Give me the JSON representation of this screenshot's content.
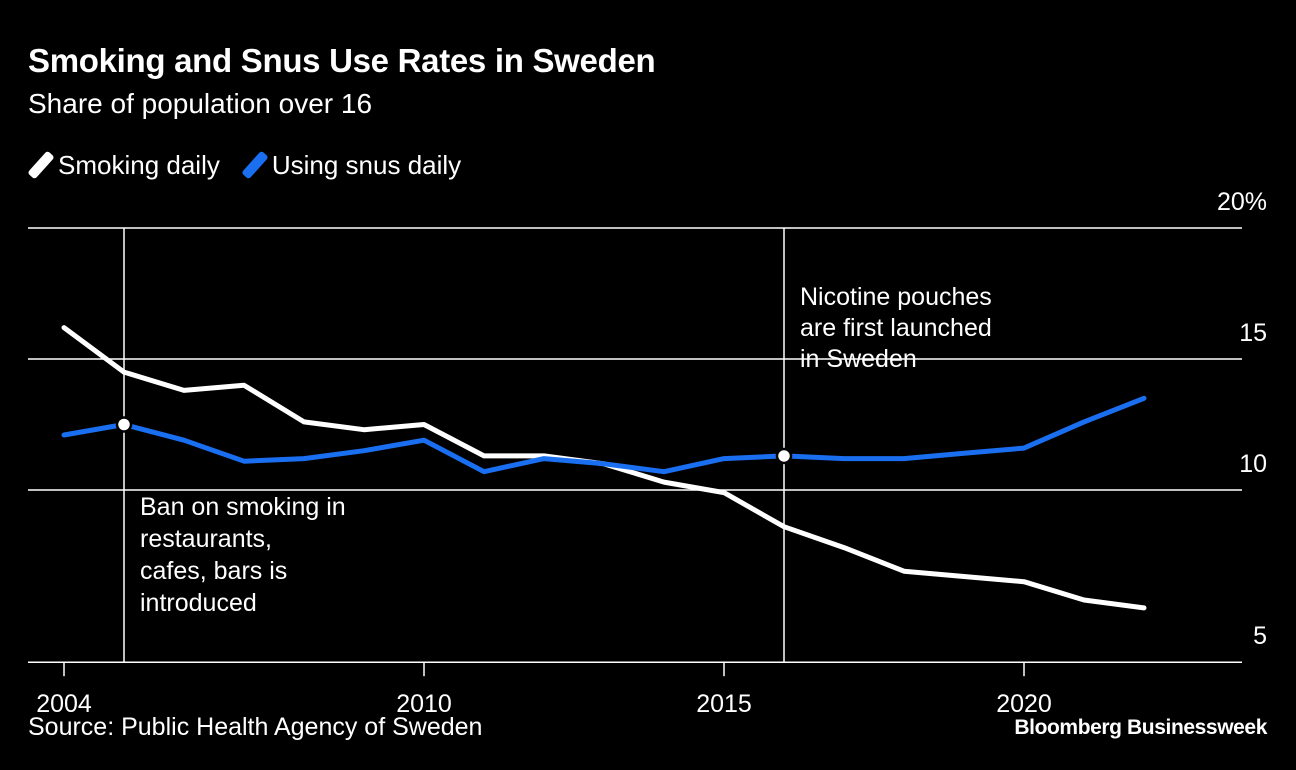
{
  "colors": {
    "background": "#000000",
    "smoking": "#ffffff",
    "snus": "#1a6ff0",
    "grid": "#ffffff",
    "text": "#ffffff"
  },
  "chart_data": {
    "type": "line",
    "title": "Smoking and Snus Use Rates in Sweden",
    "subtitle": "Share of population over 16",
    "xlim": [
      2003,
      2023.6
    ],
    "ylim": [
      4,
      20
    ],
    "y_ticks": [
      {
        "value": 20,
        "label": "20%"
      },
      {
        "value": 15,
        "label": "15"
      },
      {
        "value": 10,
        "label": "10"
      },
      {
        "value": 5,
        "label": "5"
      }
    ],
    "x_ticks": [
      {
        "value": 2004,
        "label": "2004"
      },
      {
        "value": 2010,
        "label": "2010"
      },
      {
        "value": 2015,
        "label": "2015"
      },
      {
        "value": 2020,
        "label": "2020"
      }
    ],
    "gridlines": [
      20,
      15,
      10
    ],
    "legend": "top-left",
    "series": [
      {
        "name": "Smoking daily",
        "color": "#ffffff",
        "x": [
          2004,
          2005,
          2006,
          2007,
          2008,
          2009,
          2010,
          2011,
          2012,
          2013,
          2014,
          2015,
          2016,
          2017,
          2018,
          2019,
          2020,
          2021,
          2022
        ],
        "y": [
          16.2,
          14.5,
          13.8,
          14.0,
          12.6,
          12.3,
          12.5,
          11.3,
          11.3,
          11.0,
          10.3,
          9.9,
          8.6,
          7.8,
          6.9,
          6.7,
          6.5,
          5.8,
          5.5
        ]
      },
      {
        "name": "Using snus daily",
        "color": "#1a6ff0",
        "x": [
          2004,
          2005,
          2006,
          2007,
          2008,
          2009,
          2010,
          2011,
          2012,
          2013,
          2014,
          2015,
          2016,
          2017,
          2018,
          2019,
          2020,
          2021,
          2022
        ],
        "y": [
          12.1,
          12.5,
          11.9,
          11.1,
          11.2,
          11.5,
          11.9,
          10.7,
          11.2,
          11.0,
          10.7,
          11.2,
          11.3,
          11.2,
          11.2,
          11.4,
          11.6,
          12.6,
          13.5
        ]
      }
    ],
    "annotations": [
      {
        "name": "ban",
        "x": 2005,
        "marker_y": 12.5,
        "lines": [
          "Ban on smoking in",
          "restaurants,",
          "cafes, bars is",
          "introduced"
        ]
      },
      {
        "name": "pouches",
        "x": 2016,
        "marker_y": 11.3,
        "lines": [
          "Nicotine pouches",
          "are first launched",
          "in Sweden"
        ]
      }
    ]
  },
  "legend": {
    "smoking_label": "Smoking daily",
    "snus_label": "Using snus daily"
  },
  "footer": {
    "source": "Source: Public Health Agency of Sweden",
    "brand": "Bloomberg Businessweek"
  }
}
